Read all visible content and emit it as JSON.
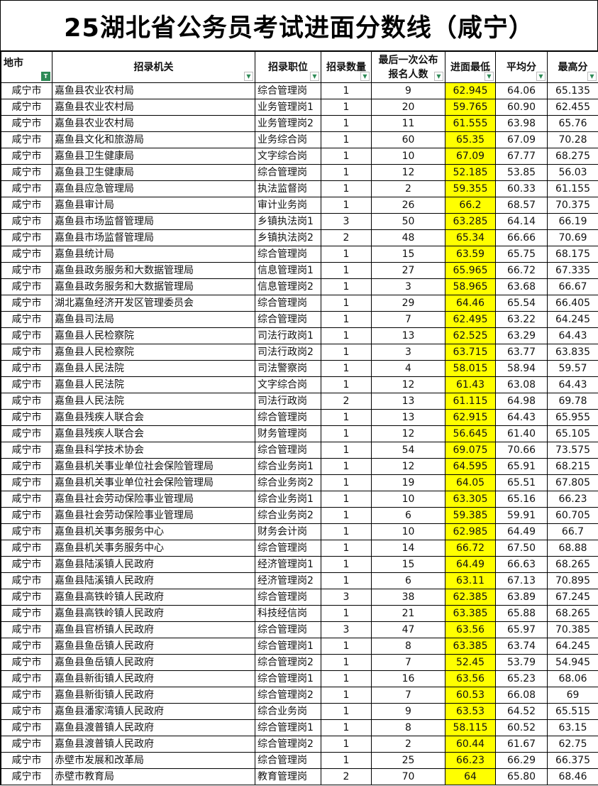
{
  "title": "25湖北省公务员考试进面分数线（咸宁）",
  "highlight_color": "#ffff00",
  "columns": [
    "地市",
    "招录机关",
    "招录职位",
    "招录数量",
    "最后一次公布报名人数",
    "进面最低",
    "平均分",
    "最高分"
  ],
  "columns_display": [
    "地市",
    "招录机关",
    "招录职位",
    "招录数量",
    "最后一次公布\n报名人数",
    "进面最低",
    "平均分",
    "最高分"
  ],
  "filter_active_column": "地市",
  "rows": [
    [
      "咸宁市",
      "嘉鱼县农业农村局",
      "综合管理岗",
      "1",
      "9",
      "62.945",
      "64.06",
      "65.135"
    ],
    [
      "咸宁市",
      "嘉鱼县农业农村局",
      "业务管理岗1",
      "1",
      "20",
      "59.765",
      "60.90",
      "62.455"
    ],
    [
      "咸宁市",
      "嘉鱼县农业农村局",
      "业务管理岗2",
      "1",
      "11",
      "61.555",
      "63.98",
      "65.76"
    ],
    [
      "咸宁市",
      "嘉鱼县文化和旅游局",
      "业务综合岗",
      "1",
      "60",
      "65.35",
      "67.09",
      "70.28"
    ],
    [
      "咸宁市",
      "嘉鱼县卫生健康局",
      "文字综合岗",
      "1",
      "10",
      "67.09",
      "67.77",
      "68.275"
    ],
    [
      "咸宁市",
      "嘉鱼县卫生健康局",
      "综合管理岗",
      "1",
      "12",
      "52.185",
      "53.85",
      "56.03"
    ],
    [
      "咸宁市",
      "嘉鱼县应急管理局",
      "执法监督岗",
      "1",
      "2",
      "59.355",
      "60.33",
      "61.155"
    ],
    [
      "咸宁市",
      "嘉鱼县审计局",
      "审计业务岗",
      "1",
      "26",
      "66.2",
      "68.57",
      "70.375"
    ],
    [
      "咸宁市",
      "嘉鱼县市场监督管理局",
      "乡镇执法岗1",
      "3",
      "50",
      "63.285",
      "64.14",
      "66.19"
    ],
    [
      "咸宁市",
      "嘉鱼县市场监督管理局",
      "乡镇执法岗2",
      "2",
      "48",
      "65.34",
      "66.66",
      "70.69"
    ],
    [
      "咸宁市",
      "嘉鱼县统计局",
      "综合管理岗",
      "1",
      "15",
      "63.59",
      "65.75",
      "68.175"
    ],
    [
      "咸宁市",
      "嘉鱼县政务服务和大数据管理局",
      "信息管理岗1",
      "1",
      "27",
      "65.965",
      "66.72",
      "67.335"
    ],
    [
      "咸宁市",
      "嘉鱼县政务服务和大数据管理局",
      "信息管理岗2",
      "1",
      "3",
      "58.965",
      "63.68",
      "66.67"
    ],
    [
      "咸宁市",
      "湖北嘉鱼经济开发区管理委员会",
      "综合管理岗",
      "1",
      "29",
      "64.46",
      "65.54",
      "66.405"
    ],
    [
      "咸宁市",
      "嘉鱼县司法局",
      "综合管理岗",
      "1",
      "7",
      "62.495",
      "63.22",
      "64.245"
    ],
    [
      "咸宁市",
      "嘉鱼县人民检察院",
      "司法行政岗1",
      "1",
      "13",
      "62.525",
      "63.29",
      "64.43"
    ],
    [
      "咸宁市",
      "嘉鱼县人民检察院",
      "司法行政岗2",
      "1",
      "3",
      "63.715",
      "63.77",
      "63.835"
    ],
    [
      "咸宁市",
      "嘉鱼县人民法院",
      "司法警察岗",
      "1",
      "4",
      "58.015",
      "58.94",
      "59.57"
    ],
    [
      "咸宁市",
      "嘉鱼县人民法院",
      "文字综合岗",
      "1",
      "12",
      "61.43",
      "63.08",
      "64.43"
    ],
    [
      "咸宁市",
      "嘉鱼县人民法院",
      "司法行政岗",
      "2",
      "13",
      "61.115",
      "64.98",
      "69.78"
    ],
    [
      "咸宁市",
      "嘉鱼县残疾人联合会",
      "综合管理岗",
      "1",
      "13",
      "62.915",
      "64.43",
      "65.955"
    ],
    [
      "咸宁市",
      "嘉鱼县残疾人联合会",
      "财务管理岗",
      "1",
      "12",
      "56.645",
      "61.40",
      "65.105"
    ],
    [
      "咸宁市",
      "嘉鱼县科学技术协会",
      "综合管理岗",
      "1",
      "54",
      "69.075",
      "70.66",
      "73.575"
    ],
    [
      "咸宁市",
      "嘉鱼县机关事业单位社会保险管理局",
      "综合业务岗1",
      "1",
      "12",
      "64.595",
      "65.91",
      "68.215"
    ],
    [
      "咸宁市",
      "嘉鱼县机关事业单位社会保险管理局",
      "综合业务岗2",
      "1",
      "19",
      "64.05",
      "65.51",
      "67.805"
    ],
    [
      "咸宁市",
      "嘉鱼县社会劳动保险事业管理局",
      "综合业务岗1",
      "1",
      "10",
      "63.305",
      "65.16",
      "66.23"
    ],
    [
      "咸宁市",
      "嘉鱼县社会劳动保险事业管理局",
      "综合业务岗2",
      "1",
      "6",
      "59.385",
      "59.91",
      "60.705"
    ],
    [
      "咸宁市",
      "嘉鱼县机关事务服务中心",
      "财务会计岗",
      "1",
      "10",
      "62.985",
      "64.49",
      "66.7"
    ],
    [
      "咸宁市",
      "嘉鱼县机关事务服务中心",
      "综合管理岗",
      "1",
      "14",
      "66.72",
      "67.50",
      "68.88"
    ],
    [
      "咸宁市",
      "嘉鱼县陆溪镇人民政府",
      "经济管理岗1",
      "1",
      "15",
      "64.49",
      "66.63",
      "68.265"
    ],
    [
      "咸宁市",
      "嘉鱼县陆溪镇人民政府",
      "经济管理岗2",
      "1",
      "6",
      "63.11",
      "67.13",
      "70.895"
    ],
    [
      "咸宁市",
      "嘉鱼县高铁岭镇人民政府",
      "综合管理岗",
      "3",
      "38",
      "62.385",
      "63.89",
      "67.245"
    ],
    [
      "咸宁市",
      "嘉鱼县高铁岭镇人民政府",
      "科技经信岗",
      "1",
      "21",
      "63.385",
      "65.88",
      "68.265"
    ],
    [
      "咸宁市",
      "嘉鱼县官桥镇人民政府",
      "综合管理岗",
      "3",
      "47",
      "63.56",
      "65.97",
      "70.385"
    ],
    [
      "咸宁市",
      "嘉鱼县鱼岳镇人民政府",
      "综合管理岗1",
      "1",
      "8",
      "63.385",
      "63.74",
      "64.245"
    ],
    [
      "咸宁市",
      "嘉鱼县鱼岳镇人民政府",
      "综合管理岗2",
      "1",
      "7",
      "52.45",
      "53.79",
      "54.945"
    ],
    [
      "咸宁市",
      "嘉鱼县新街镇人民政府",
      "综合管理岗1",
      "1",
      "16",
      "63.56",
      "65.23",
      "68.06"
    ],
    [
      "咸宁市",
      "嘉鱼县新街镇人民政府",
      "综合管理岗2",
      "1",
      "7",
      "60.53",
      "66.08",
      "69"
    ],
    [
      "咸宁市",
      "嘉鱼县潘家湾镇人民政府",
      "综合业务岗",
      "1",
      "9",
      "63.53",
      "64.52",
      "65.515"
    ],
    [
      "咸宁市",
      "嘉鱼县渡普镇人民政府",
      "综合管理岗1",
      "1",
      "8",
      "58.115",
      "60.52",
      "63.15"
    ],
    [
      "咸宁市",
      "嘉鱼县渡普镇人民政府",
      "综合管理岗2",
      "1",
      "2",
      "60.44",
      "61.67",
      "62.75"
    ],
    [
      "咸宁市",
      "赤壁市发展和改革局",
      "综合管理岗",
      "1",
      "25",
      "66.23",
      "66.29",
      "66.375"
    ],
    [
      "咸宁市",
      "赤壁市教育局",
      "教育管理岗",
      "2",
      "70",
      "64",
      "65.80",
      "68.46"
    ]
  ]
}
